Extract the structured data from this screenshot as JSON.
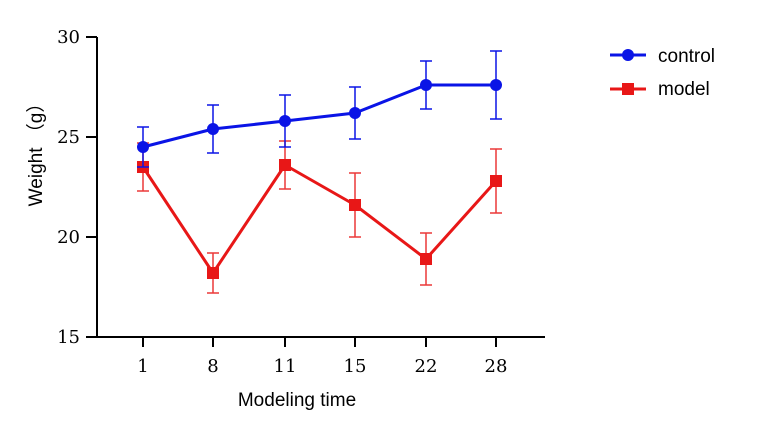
{
  "chart_data": {
    "type": "line",
    "title": "",
    "xlabel": "Modeling time",
    "ylabel": "Weight  （g）",
    "categories": [
      "1",
      "8",
      "11",
      "15",
      "22",
      "28"
    ],
    "ylim": [
      15,
      30
    ],
    "yticks": [
      "15",
      "20",
      "25",
      "30"
    ],
    "grid": false,
    "legend_position": "top-right",
    "series": [
      {
        "name": "control",
        "color": "#0a14e6",
        "marker": "circle",
        "values": [
          24.5,
          25.4,
          25.8,
          26.2,
          27.6,
          27.6
        ],
        "error": [
          1.0,
          1.2,
          1.3,
          1.3,
          1.2,
          1.7
        ]
      },
      {
        "name": "model",
        "color": "#e81717",
        "marker": "square",
        "values": [
          23.5,
          18.2,
          23.6,
          21.6,
          18.9,
          22.8
        ],
        "error": [
          1.2,
          1.0,
          1.2,
          1.6,
          1.3,
          1.6
        ]
      }
    ]
  }
}
